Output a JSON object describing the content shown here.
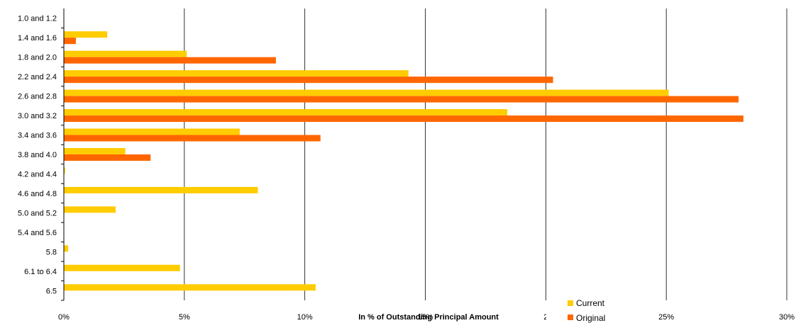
{
  "chart_data": {
    "type": "bar",
    "orientation": "horizontal",
    "categories": [
      "1.0 and 1.2",
      "1.4 and 1.6",
      "1.8 and 2.0",
      "2.2 and 2.4",
      "2.6 and 2.8",
      "3.0 and 3.2",
      "3.4 and 3.6",
      "3.8 and 4.0",
      "4.2 and 4.4",
      "4.6 and 4.8",
      "5.0 and 5.2",
      "5.4 and 5.6",
      "5.8",
      "6.1 to 6.4",
      "6.5"
    ],
    "series": [
      {
        "name": "Current",
        "color": "#FFCC00",
        "values": [
          0,
          1.8,
          5.1,
          14.3,
          25.1,
          18.4,
          7.3,
          2.55,
          0.05,
          8.05,
          2.15,
          0,
          0.18,
          4.82,
          10.45
        ]
      },
      {
        "name": "Original",
        "color": "#FF6600",
        "values": [
          0,
          0.5,
          8.8,
          20.3,
          28.0,
          28.2,
          10.65,
          3.6,
          0,
          0,
          0,
          0,
          0,
          0,
          0
        ]
      }
    ],
    "xlabel": "In % of Outstanding Principal Amount",
    "x_ticks": [
      "0%",
      "5%",
      "10%",
      "15%",
      "2",
      "25%",
      "30%"
    ],
    "xlim": [
      0,
      30
    ],
    "grid": "vertical",
    "legend_position": "bottom-right"
  }
}
